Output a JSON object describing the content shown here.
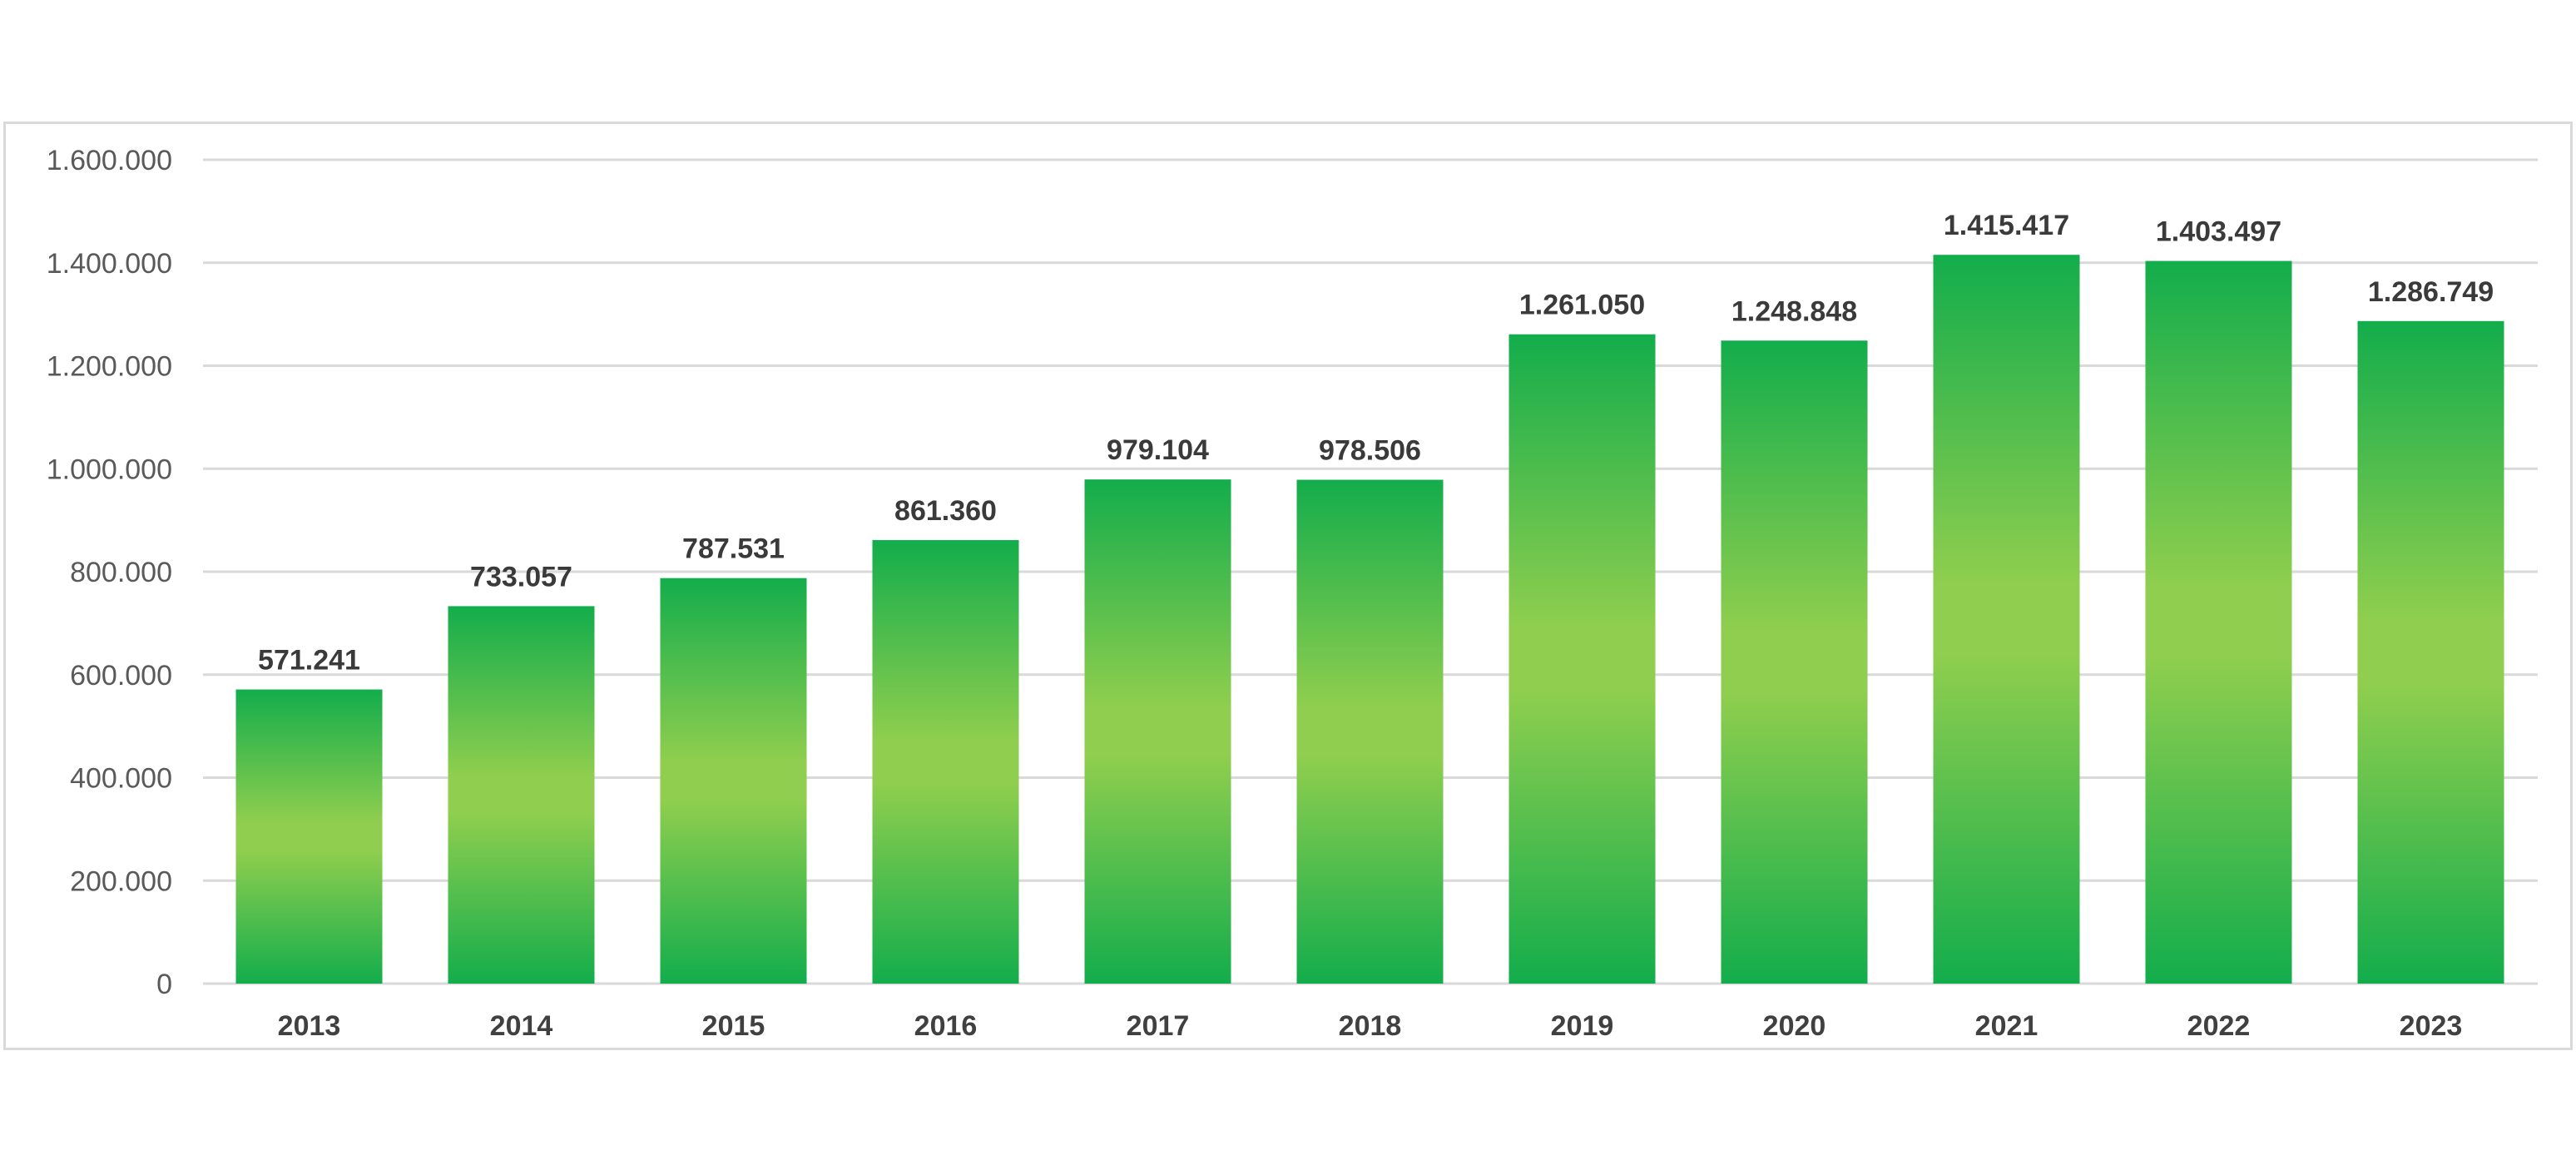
{
  "chart_data": {
    "type": "bar",
    "title": "",
    "xlabel": "",
    "ylabel": "",
    "categories": [
      "2013",
      "2014",
      "2015",
      "2016",
      "2017",
      "2018",
      "2019",
      "2020",
      "2021",
      "2022",
      "2023"
    ],
    "values": [
      571241,
      733057,
      787531,
      861360,
      979104,
      978506,
      1261050,
      1248848,
      1415417,
      1403497,
      1286749
    ],
    "value_labels": [
      "571.241",
      "733.057",
      "787.531",
      "861.360",
      "979.104",
      "978.506",
      "1.261.050",
      "1.248.848",
      "1.415.417",
      "1.403.497",
      "1.286.749"
    ],
    "ylim": [
      0,
      1600000
    ],
    "y_ticks": [
      0,
      200000,
      400000,
      600000,
      800000,
      1000000,
      1200000,
      1400000,
      1600000
    ],
    "y_tick_labels": [
      "0",
      "200.000",
      "400.000",
      "600.000",
      "800.000",
      "1.000.000",
      "1.200.000",
      "1.400.000",
      "1.600.000"
    ],
    "grid": true,
    "legend": "none",
    "colors": {
      "bar_edge": "#13ad4c",
      "bar_center": "#8fce4e",
      "gridline": "#d9d9d9",
      "tick_text": "#595959",
      "category_text": "#404040",
      "label_text": "#3a3a3a"
    }
  }
}
